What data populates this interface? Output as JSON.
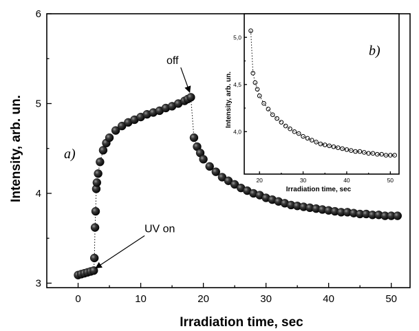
{
  "chart_data": [
    {
      "type": "scatter",
      "panel_label": "a)",
      "xlabel": "Irradiation time, sec",
      "ylabel": "Intensity, arb. un.",
      "xlim": [
        -5,
        53
      ],
      "ylim": [
        2.95,
        6.0
      ],
      "x_ticks": [
        0,
        10,
        20,
        30,
        40,
        50
      ],
      "y_ticks": [
        3,
        4,
        5,
        6
      ],
      "marker": "filled-sphere",
      "connector": "dotted",
      "annotations": [
        {
          "text": "UV on",
          "x": 1.5,
          "y": 3.13
        },
        {
          "text": "off",
          "x": 17.6,
          "y": 5.08
        }
      ],
      "series": [
        {
          "x": [
            0,
            0.5,
            1,
            1.5,
            2,
            2.5,
            2.6,
            2.7,
            2.8,
            2.9,
            3.0,
            3.2,
            3.5,
            4,
            4.5,
            5,
            6,
            7,
            8,
            9,
            10,
            11,
            12,
            13,
            14,
            15,
            16,
            17,
            17.5,
            18,
            18.5,
            19,
            19.5,
            20,
            21,
            22,
            23,
            24,
            25,
            26,
            27,
            28,
            29,
            30,
            31,
            32,
            33,
            34,
            35,
            36,
            37,
            38,
            39,
            40,
            41,
            42,
            43,
            44,
            45,
            46,
            47,
            48,
            49,
            50,
            51
          ],
          "y": [
            3.09,
            3.1,
            3.11,
            3.12,
            3.13,
            3.14,
            3.28,
            3.62,
            3.8,
            4.05,
            4.12,
            4.22,
            4.35,
            4.48,
            4.56,
            4.62,
            4.7,
            4.75,
            4.79,
            4.82,
            4.85,
            4.88,
            4.9,
            4.92,
            4.95,
            4.97,
            5.0,
            5.03,
            5.05,
            5.07,
            4.62,
            4.52,
            4.45,
            4.38,
            4.3,
            4.24,
            4.18,
            4.14,
            4.1,
            4.06,
            4.03,
            4.0,
            3.98,
            3.95,
            3.93,
            3.91,
            3.89,
            3.87,
            3.86,
            3.85,
            3.84,
            3.83,
            3.82,
            3.81,
            3.8,
            3.79,
            3.79,
            3.78,
            3.77,
            3.77,
            3.76,
            3.76,
            3.75,
            3.75,
            3.75
          ]
        }
      ]
    },
    {
      "type": "scatter",
      "panel_label": "b)",
      "xlabel": "Irradiation time, sec",
      "ylabel": "Intensity, arb. un.",
      "xlim": [
        16.5,
        52
      ],
      "ylim": [
        3.55,
        5.25
      ],
      "x_ticks": [
        20,
        30,
        40,
        50
      ],
      "y_ticks": [
        4.0,
        4.5,
        5.0
      ],
      "x_tick_labels": [
        "20",
        "30",
        "40",
        "50"
      ],
      "y_tick_labels": [
        "4,0",
        "4,5",
        "5,0"
      ],
      "marker": "open-circle",
      "connector": "dotted",
      "series": [
        {
          "x": [
            18,
            18.5,
            19,
            19.5,
            20,
            21,
            22,
            23,
            24,
            25,
            26,
            27,
            28,
            29,
            30,
            31,
            32,
            33,
            34,
            35,
            36,
            37,
            38,
            39,
            40,
            41,
            42,
            43,
            44,
            45,
            46,
            47,
            48,
            49,
            50,
            51
          ],
          "y": [
            5.07,
            4.62,
            4.52,
            4.45,
            4.38,
            4.3,
            4.24,
            4.18,
            4.14,
            4.1,
            4.06,
            4.03,
            4.0,
            3.98,
            3.95,
            3.93,
            3.91,
            3.89,
            3.87,
            3.86,
            3.85,
            3.84,
            3.83,
            3.82,
            3.81,
            3.8,
            3.79,
            3.79,
            3.78,
            3.77,
            3.77,
            3.76,
            3.76,
            3.75,
            3.75,
            3.75
          ]
        }
      ]
    }
  ]
}
